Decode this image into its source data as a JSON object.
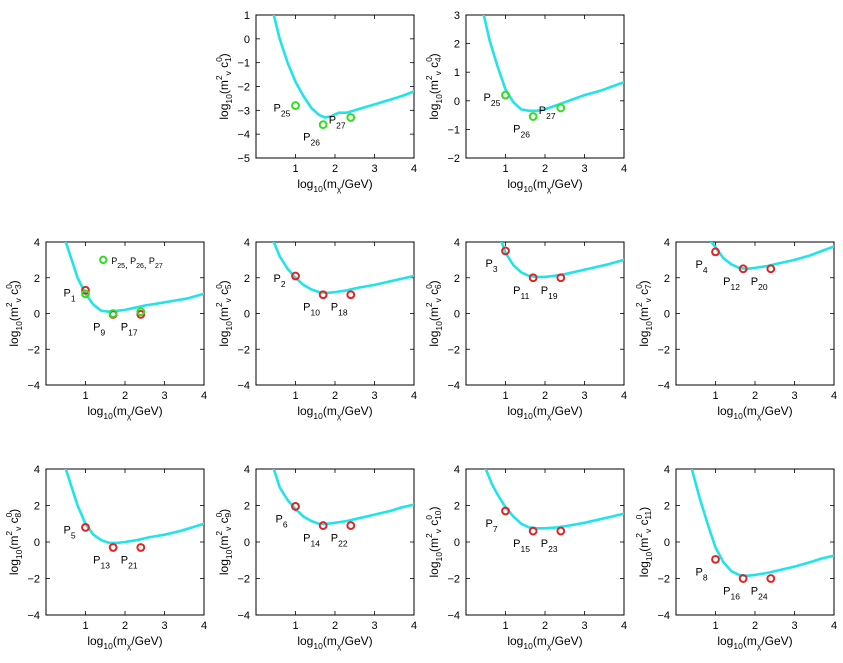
{
  "colors": {
    "curve": "#22e3ea",
    "benchmark_green": "#33dd22",
    "benchmark_red": "#e02424",
    "marker_fill_green": "#b7f0a0",
    "marker_fill_red": "#f6b0b0"
  },
  "chart_data": [
    {
      "type": "line",
      "coef": "1",
      "xlim": [
        0,
        4
      ],
      "ylim": [
        -5,
        1
      ],
      "xticks": [
        1,
        2,
        3,
        4
      ],
      "yticks": [
        -5,
        -4,
        -3,
        -2,
        -1,
        0,
        1
      ],
      "xlabel": {
        "pre": "log",
        "sub": "10",
        "mid": "(m",
        "sub2": "χ",
        "post": "/GeV)"
      },
      "ylabel": {
        "pre": "log",
        "sub": "10",
        "mid": "(m",
        "sup": "2",
        "sub2": "v",
        "c": " c",
        "sup2": "0",
        "csub": "1",
        "post": ")"
      },
      "curve": {
        "x": [
          0.45,
          0.6,
          0.8,
          1.0,
          1.2,
          1.4,
          1.6,
          1.75,
          1.9,
          2.1,
          2.3,
          2.5,
          2.8,
          3.1,
          3.4,
          3.7,
          4.0
        ],
        "y": [
          1.0,
          0.0,
          -1.0,
          -1.8,
          -2.4,
          -2.9,
          -3.2,
          -3.3,
          -3.25,
          -3.1,
          -3.1,
          -3.0,
          -2.85,
          -2.7,
          -2.55,
          -2.4,
          -2.2
        ]
      },
      "points": [
        {
          "n": "25",
          "x": 1.0,
          "y": -2.8,
          "color": "green",
          "label_at": "left"
        },
        {
          "n": "26",
          "x": 1.7,
          "y": -3.6,
          "color": "green",
          "label_at": "below-left"
        },
        {
          "n": "27",
          "x": 2.4,
          "y": -3.3,
          "color": "green",
          "label_at": "left"
        }
      ]
    },
    {
      "type": "line",
      "coef": "4",
      "xlim": [
        0,
        4
      ],
      "ylim": [
        -2,
        3
      ],
      "xticks": [
        1,
        2,
        3,
        4
      ],
      "yticks": [
        -2,
        -1,
        0,
        1,
        2,
        3
      ],
      "xlabel": {
        "pre": "log",
        "sub": "10",
        "mid": "(m",
        "sub2": "χ",
        "post": "/GeV)"
      },
      "ylabel": {
        "pre": "log",
        "sub": "10",
        "mid": "(m",
        "sup": "2",
        "sub2": "v",
        "c": " c",
        "sup2": "0",
        "csub": "4",
        "post": ")"
      },
      "curve": {
        "x": [
          0.45,
          0.6,
          0.8,
          1.0,
          1.2,
          1.4,
          1.6,
          1.8,
          2.0,
          2.2,
          2.4,
          2.6,
          3.0,
          3.4,
          3.7,
          4.0
        ],
        "y": [
          3.0,
          2.1,
          1.2,
          0.4,
          -0.05,
          -0.3,
          -0.35,
          -0.35,
          -0.3,
          -0.2,
          -0.1,
          0.0,
          0.2,
          0.35,
          0.5,
          0.65
        ]
      },
      "points": [
        {
          "n": "25",
          "x": 1.0,
          "y": 0.2,
          "color": "green",
          "label_at": "left"
        },
        {
          "n": "26",
          "x": 1.7,
          "y": -0.55,
          "color": "green",
          "label_at": "below-left"
        },
        {
          "n": "27",
          "x": 2.4,
          "y": -0.25,
          "color": "green",
          "label_at": "left"
        }
      ]
    },
    {
      "type": "line",
      "coef": "3",
      "xlim": [
        0,
        4
      ],
      "ylim": [
        -4,
        4
      ],
      "xticks": [
        1,
        2,
        3,
        4
      ],
      "yticks": [
        -4,
        -2,
        0,
        2,
        4
      ],
      "xlabel": {
        "pre": "log",
        "sub": "10",
        "mid": "(m",
        "sub2": "χ",
        "post": "/GeV)"
      },
      "ylabel": {
        "pre": "log",
        "sub": "10",
        "mid": "(m",
        "sup": "2",
        "sub2": "v",
        "c": " c",
        "sup2": "0",
        "csub": "3",
        "post": ")"
      },
      "curve": {
        "x": [
          0.5,
          0.65,
          0.8,
          1.0,
          1.2,
          1.4,
          1.6,
          1.8,
          2.0,
          2.2,
          2.5,
          2.8,
          3.2,
          3.6,
          4.0
        ],
        "y": [
          4.0,
          3.0,
          2.0,
          1.1,
          0.5,
          0.15,
          0.1,
          0.15,
          0.2,
          0.3,
          0.45,
          0.55,
          0.7,
          0.85,
          1.1
        ]
      },
      "points": [
        {
          "n": "1",
          "x": 1.0,
          "y": 1.3,
          "color": "red",
          "label_at": "left"
        },
        {
          "n": "9",
          "x": 1.7,
          "y": -0.05,
          "color": "red",
          "label_at": "below-left"
        },
        {
          "n": "17",
          "x": 2.4,
          "y": -0.05,
          "color": "red",
          "label_at": "below-left"
        },
        {
          "n": "",
          "x": 1.0,
          "y": 1.1,
          "color": "green",
          "label_at": "none"
        },
        {
          "n": "",
          "x": 1.7,
          "y": 0.0,
          "color": "green",
          "label_at": "none"
        },
        {
          "n": "",
          "x": 2.4,
          "y": 0.1,
          "color": "green",
          "label_at": "none"
        }
      ],
      "legend": {
        "label": "P",
        "subs": [
          "25",
          "26",
          "27"
        ],
        "x": 1.45,
        "y": 3.0
      }
    },
    {
      "type": "line",
      "coef": "5",
      "xlim": [
        0,
        4
      ],
      "ylim": [
        -4,
        4
      ],
      "xticks": [
        1,
        2,
        3,
        4
      ],
      "yticks": [
        -4,
        -2,
        0,
        2,
        4
      ],
      "xlabel": {
        "pre": "log",
        "sub": "10",
        "mid": "(m",
        "sub2": "χ",
        "post": "/GeV)"
      },
      "ylabel": {
        "pre": "log",
        "sub": "10",
        "mid": "(m",
        "sup": "2",
        "sub2": "v",
        "c": " c",
        "sup2": "0",
        "csub": "5",
        "post": ")"
      },
      "curve": {
        "x": [
          0.45,
          0.6,
          0.8,
          1.0,
          1.2,
          1.4,
          1.6,
          1.8,
          2.0,
          2.3,
          2.6,
          3.0,
          3.4,
          3.7,
          4.0
        ],
        "y": [
          4.0,
          3.2,
          2.5,
          2.0,
          1.6,
          1.35,
          1.2,
          1.15,
          1.2,
          1.3,
          1.45,
          1.6,
          1.8,
          1.95,
          2.1
        ]
      },
      "points": [
        {
          "n": "2",
          "x": 1.0,
          "y": 2.1,
          "color": "red",
          "label_at": "left"
        },
        {
          "n": "10",
          "x": 1.7,
          "y": 1.05,
          "color": "red",
          "label_at": "below-left"
        },
        {
          "n": "18",
          "x": 2.4,
          "y": 1.05,
          "color": "red",
          "label_at": "below-left"
        }
      ]
    },
    {
      "type": "line",
      "coef": "6",
      "xlim": [
        0,
        4
      ],
      "ylim": [
        -4,
        4
      ],
      "xticks": [
        1,
        2,
        3,
        4
      ],
      "yticks": [
        -4,
        -2,
        0,
        2,
        4
      ],
      "xlabel": {
        "pre": "log",
        "sub": "10",
        "mid": "(m",
        "sub2": "χ",
        "post": "/GeV)"
      },
      "ylabel": {
        "pre": "log",
        "sub": "10",
        "mid": "(m",
        "sup": "2",
        "sub2": "v",
        "c": " c",
        "sup2": "0",
        "csub": "6",
        "post": ")"
      },
      "curve": {
        "x": [
          0.9,
          1.0,
          1.2,
          1.4,
          1.6,
          1.8,
          2.0,
          2.2,
          2.5,
          2.8,
          3.2,
          3.6,
          4.0
        ],
        "y": [
          4.0,
          3.4,
          2.7,
          2.3,
          2.1,
          2.05,
          2.05,
          2.1,
          2.2,
          2.35,
          2.55,
          2.75,
          3.0
        ]
      },
      "points": [
        {
          "n": "3",
          "x": 1.0,
          "y": 3.5,
          "color": "red",
          "label_at": "below-left"
        },
        {
          "n": "11",
          "x": 1.7,
          "y": 2.0,
          "color": "red",
          "label_at": "below-left"
        },
        {
          "n": "19",
          "x": 2.4,
          "y": 2.0,
          "color": "red",
          "label_at": "below-left"
        }
      ]
    },
    {
      "type": "line",
      "coef": "7",
      "xlim": [
        0,
        4
      ],
      "ylim": [
        -4,
        4
      ],
      "xticks": [
        1,
        2,
        3,
        4
      ],
      "yticks": [
        -4,
        -2,
        0,
        2,
        4
      ],
      "xlabel": {
        "pre": "log",
        "sub": "10",
        "mid": "(m",
        "sub2": "χ",
        "post": "/GeV)"
      },
      "ylabel": {
        "pre": "log",
        "sub": "10",
        "mid": "(m",
        "sup": "2",
        "sub2": "v",
        "c": " c",
        "sup2": "0",
        "csub": "7",
        "post": ")"
      },
      "curve": {
        "x": [
          0.9,
          1.0,
          1.2,
          1.4,
          1.6,
          1.8,
          2.0,
          2.3,
          2.6,
          3.0,
          3.4,
          3.7,
          4.0
        ],
        "y": [
          4.0,
          3.7,
          3.1,
          2.75,
          2.55,
          2.5,
          2.55,
          2.65,
          2.8,
          3.0,
          3.25,
          3.5,
          3.75
        ]
      },
      "points": [
        {
          "n": "4",
          "x": 1.0,
          "y": 3.45,
          "color": "red",
          "label_at": "below-left"
        },
        {
          "n": "12",
          "x": 1.7,
          "y": 2.5,
          "color": "red",
          "label_at": "below-left"
        },
        {
          "n": "20",
          "x": 2.4,
          "y": 2.5,
          "color": "red",
          "label_at": "below-left"
        }
      ]
    },
    {
      "type": "line",
      "coef": "8",
      "xlim": [
        0,
        4
      ],
      "ylim": [
        -4,
        4
      ],
      "xticks": [
        1,
        2,
        3,
        4
      ],
      "yticks": [
        -4,
        -2,
        0,
        2,
        4
      ],
      "xlabel": {
        "pre": "log",
        "sub": "10",
        "mid": "(m",
        "sub2": "χ",
        "post": "/GeV)"
      },
      "ylabel": {
        "pre": "log",
        "sub": "10",
        "mid": "(m",
        "sup": "2",
        "sub2": "v",
        "c": " c",
        "sup2": "0",
        "csub": "8",
        "post": ")"
      },
      "curve": {
        "x": [
          0.5,
          0.65,
          0.8,
          1.0,
          1.2,
          1.4,
          1.6,
          1.8,
          2.0,
          2.3,
          2.6,
          3.0,
          3.4,
          3.7,
          4.0
        ],
        "y": [
          4.0,
          3.0,
          2.0,
          1.0,
          0.4,
          0.1,
          -0.05,
          -0.05,
          0.0,
          0.1,
          0.25,
          0.4,
          0.6,
          0.8,
          1.0
        ]
      },
      "points": [
        {
          "n": "5",
          "x": 1.0,
          "y": 0.8,
          "color": "red",
          "label_at": "left"
        },
        {
          "n": "13",
          "x": 1.7,
          "y": -0.3,
          "color": "red",
          "label_at": "below-left"
        },
        {
          "n": "21",
          "x": 2.4,
          "y": -0.3,
          "color": "red",
          "label_at": "below-left"
        }
      ]
    },
    {
      "type": "line",
      "coef": "9",
      "xlim": [
        0,
        4
      ],
      "ylim": [
        -4,
        4
      ],
      "xticks": [
        1,
        2,
        3,
        4
      ],
      "yticks": [
        -4,
        -2,
        0,
        2,
        4
      ],
      "xlabel": {
        "pre": "log",
        "sub": "10",
        "mid": "(m",
        "sub2": "χ",
        "post": "/GeV)"
      },
      "ylabel": {
        "pre": "log",
        "sub": "10",
        "mid": "(m",
        "sup": "2",
        "sub2": "v",
        "c": " c",
        "sup2": "0",
        "csub": "9",
        "post": ")"
      },
      "curve": {
        "x": [
          0.45,
          0.6,
          0.8,
          1.0,
          1.2,
          1.4,
          1.6,
          1.8,
          2.0,
          2.3,
          2.6,
          3.0,
          3.4,
          3.7,
          4.0
        ],
        "y": [
          4.0,
          3.0,
          2.3,
          1.8,
          1.4,
          1.15,
          1.0,
          1.0,
          1.05,
          1.15,
          1.3,
          1.5,
          1.7,
          1.9,
          2.05
        ]
      },
      "points": [
        {
          "n": "6",
          "x": 1.0,
          "y": 1.95,
          "color": "red",
          "label_at": "below-left"
        },
        {
          "n": "14",
          "x": 1.7,
          "y": 0.9,
          "color": "red",
          "label_at": "below-left"
        },
        {
          "n": "22",
          "x": 2.4,
          "y": 0.9,
          "color": "red",
          "label_at": "below-left"
        }
      ]
    },
    {
      "type": "line",
      "coef": "10",
      "xlim": [
        0,
        4
      ],
      "ylim": [
        -4,
        4
      ],
      "xticks": [
        1,
        2,
        3,
        4
      ],
      "yticks": [
        -4,
        -2,
        0,
        2,
        4
      ],
      "xlabel": {
        "pre": "log",
        "sub": "10",
        "mid": "(m",
        "sub2": "χ",
        "post": "/GeV)"
      },
      "ylabel": {
        "pre": "log",
        "sub": "10",
        "mid": "(m",
        "sup": "2",
        "sub2": "v",
        "c": " c",
        "sup2": "0",
        "csub": "10",
        "post": ")"
      },
      "curve": {
        "x": [
          0.5,
          0.65,
          0.8,
          1.0,
          1.2,
          1.4,
          1.6,
          1.8,
          2.0,
          2.3,
          2.6,
          3.0,
          3.4,
          3.7,
          4.0
        ],
        "y": [
          4.0,
          3.2,
          2.6,
          1.9,
          1.4,
          1.0,
          0.8,
          0.75,
          0.75,
          0.8,
          0.9,
          1.05,
          1.25,
          1.4,
          1.55
        ]
      },
      "points": [
        {
          "n": "7",
          "x": 1.0,
          "y": 1.7,
          "color": "red",
          "label_at": "below-left"
        },
        {
          "n": "15",
          "x": 1.7,
          "y": 0.6,
          "color": "red",
          "label_at": "below-left"
        },
        {
          "n": "23",
          "x": 2.4,
          "y": 0.6,
          "color": "red",
          "label_at": "below-left"
        }
      ]
    },
    {
      "type": "line",
      "coef": "11",
      "xlim": [
        0,
        4
      ],
      "ylim": [
        -4,
        4
      ],
      "xticks": [
        1,
        2,
        3,
        4
      ],
      "yticks": [
        -4,
        -2,
        0,
        2,
        4
      ],
      "xlabel": {
        "pre": "log",
        "sub": "10",
        "mid": "(m",
        "sub2": "χ",
        "post": "/GeV)"
      },
      "ylabel": {
        "pre": "log",
        "sub": "10",
        "mid": "(m",
        "sup": "2",
        "sub2": "v",
        "c": " c",
        "sup2": "0",
        "csub": "11",
        "post": ")"
      },
      "curve": {
        "x": [
          0.4,
          0.6,
          0.8,
          1.0,
          1.2,
          1.4,
          1.6,
          1.8,
          2.0,
          2.3,
          2.6,
          3.0,
          3.4,
          3.7,
          4.0
        ],
        "y": [
          4.0,
          2.4,
          1.0,
          -0.3,
          -1.1,
          -1.6,
          -1.8,
          -1.85,
          -1.8,
          -1.7,
          -1.55,
          -1.35,
          -1.1,
          -0.9,
          -0.75
        ]
      },
      "points": [
        {
          "n": "8",
          "x": 1.0,
          "y": -0.95,
          "color": "red",
          "label_at": "below-left"
        },
        {
          "n": "16",
          "x": 1.7,
          "y": -2.0,
          "color": "red",
          "label_at": "below-left"
        },
        {
          "n": "24",
          "x": 2.4,
          "y": -2.0,
          "color": "red",
          "label_at": "below-left"
        }
      ]
    }
  ]
}
